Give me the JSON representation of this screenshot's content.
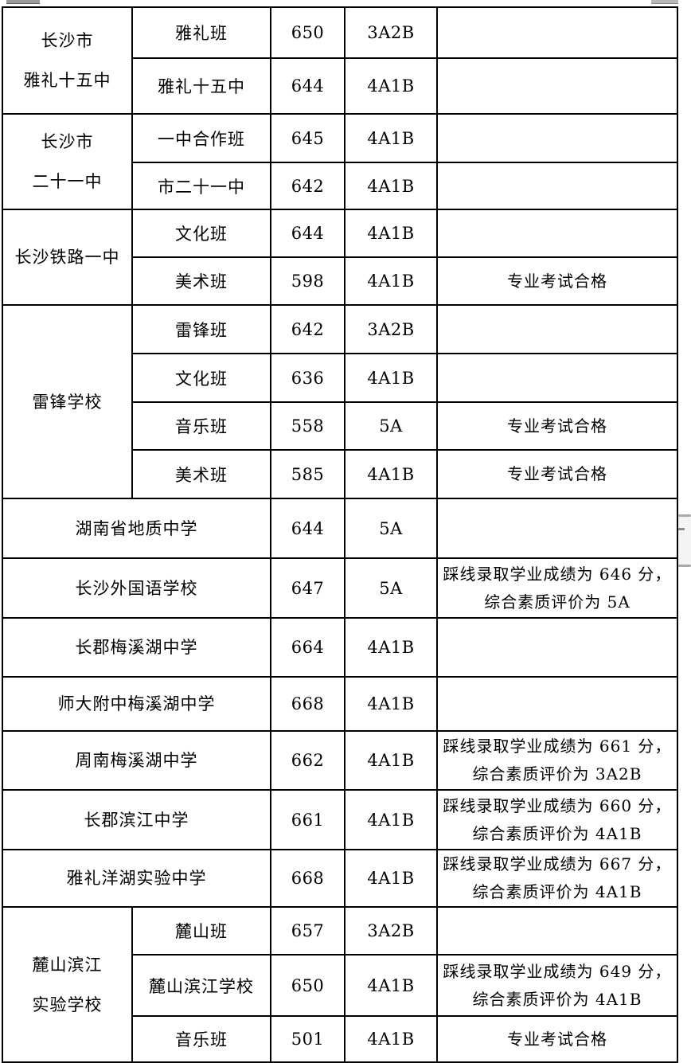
{
  "page": {
    "background": "#ffffff",
    "line_color": "#000000",
    "text_color": "#000000"
  },
  "artifacts": {
    "top_left_fragment_color": "#9b9b9b",
    "top_right_fragment_color": "#b8b8b8",
    "scrollbar": {
      "track_color": "#f4f4f4",
      "cap_color": "#a9a9a9",
      "dash_color": "#8c8c8c"
    }
  },
  "table": {
    "columns": [
      "school",
      "class",
      "score",
      "grade",
      "note"
    ],
    "sections": [
      {
        "school_lines": [
          "长沙市",
          "雅礼十五中"
        ],
        "merged_class": false,
        "rows": [
          {
            "class": "雅礼班",
            "score": "650",
            "grade": "3A2B",
            "note_lines": []
          },
          {
            "class": "雅礼十五中",
            "score": "644",
            "grade": "4A1B",
            "note_lines": []
          }
        ]
      },
      {
        "school_lines": [
          "长沙市",
          "二十一中"
        ],
        "merged_class": false,
        "rows": [
          {
            "class": "一中合作班",
            "score": "645",
            "grade": "4A1B",
            "note_lines": []
          },
          {
            "class": "市二十一中",
            "score": "642",
            "grade": "4A1B",
            "note_lines": []
          }
        ]
      },
      {
        "school_lines": [
          "长沙铁路一中"
        ],
        "merged_class": false,
        "rows": [
          {
            "class": "文化班",
            "score": "644",
            "grade": "4A1B",
            "note_lines": []
          },
          {
            "class": "美术班",
            "score": "598",
            "grade": "4A1B",
            "note_lines": [
              "专业考试合格"
            ]
          }
        ]
      },
      {
        "school_lines": [
          "雷锋学校"
        ],
        "merged_class": false,
        "rows": [
          {
            "class": "雷锋班",
            "score": "642",
            "grade": "3A2B",
            "note_lines": []
          },
          {
            "class": "文化班",
            "score": "636",
            "grade": "4A1B",
            "note_lines": []
          },
          {
            "class": "音乐班",
            "score": "558",
            "grade": "5A",
            "note_lines": [
              "专业考试合格"
            ]
          },
          {
            "class": "美术班",
            "score": "585",
            "grade": "4A1B",
            "note_lines": [
              "专业考试合格"
            ]
          }
        ]
      },
      {
        "school_lines": [
          "湖南省地质中学"
        ],
        "merged_class": true,
        "rows": [
          {
            "class": "",
            "score": "644",
            "grade": "5A",
            "note_lines": []
          }
        ]
      },
      {
        "school_lines": [
          "长沙外国语学校"
        ],
        "merged_class": true,
        "rows": [
          {
            "class": "",
            "score": "647",
            "grade": "5A",
            "note_lines": [
              "踩线录取学业成绩为 646 分，",
              "综合素质评价为 5A"
            ]
          }
        ]
      },
      {
        "school_lines": [
          "长郡梅溪湖中学"
        ],
        "merged_class": true,
        "rows": [
          {
            "class": "",
            "score": "664",
            "grade": "4A1B",
            "note_lines": []
          }
        ]
      },
      {
        "school_lines": [
          "师大附中梅溪湖中学"
        ],
        "merged_class": true,
        "rows": [
          {
            "class": "",
            "score": "668",
            "grade": "4A1B",
            "note_lines": []
          }
        ]
      },
      {
        "school_lines": [
          "周南梅溪湖中学"
        ],
        "merged_class": true,
        "rows": [
          {
            "class": "",
            "score": "662",
            "grade": "4A1B",
            "note_lines": [
              "踩线录取学业成绩为 661 分，",
              "综合素质评价为 3A2B"
            ]
          }
        ]
      },
      {
        "school_lines": [
          "长郡滨江中学"
        ],
        "merged_class": true,
        "rows": [
          {
            "class": "",
            "score": "661",
            "grade": "4A1B",
            "note_lines": [
              "踩线录取学业成绩为 660 分，",
              "综合素质评价为 4A1B"
            ]
          }
        ]
      },
      {
        "school_lines": [
          "雅礼洋湖实验中学"
        ],
        "merged_class": true,
        "rows": [
          {
            "class": "",
            "score": "668",
            "grade": "4A1B",
            "note_lines": [
              "踩线录取学业成绩为 667 分，",
              "综合素质评价为 4A1B"
            ]
          }
        ]
      },
      {
        "school_lines": [
          "麓山滨江",
          "实验学校"
        ],
        "merged_class": false,
        "rows": [
          {
            "class": "麓山班",
            "score": "657",
            "grade": "3A2B",
            "note_lines": []
          },
          {
            "class": "麓山滨江学校",
            "score": "650",
            "grade": "4A1B",
            "note_lines": [
              "踩线录取学业成绩为 649 分，",
              "综合素质评价为 4A1B"
            ]
          },
          {
            "class": "音乐班",
            "score": "501",
            "grade": "4A1B",
            "note_lines": [
              "专业考试合格"
            ]
          }
        ]
      }
    ]
  }
}
